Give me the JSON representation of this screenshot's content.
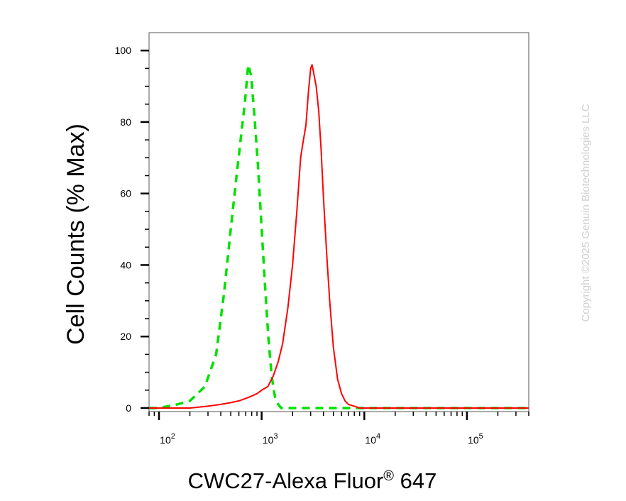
{
  "chart_data": {
    "type": "line",
    "title": "",
    "xlabel": "CWC27-Alexa Fluor",
    "xlabel_mark": "®",
    "xlabel_suffix": " 647",
    "ylabel": "Cell Counts (% Max)",
    "xscale": "log",
    "xlim": [
      80,
      400000
    ],
    "ylim": [
      -1,
      105
    ],
    "x_ticks": [
      {
        "value": 100,
        "base": "10",
        "exp": "2"
      },
      {
        "value": 1000,
        "base": "10",
        "exp": "3"
      },
      {
        "value": 10000,
        "base": "10",
        "exp": "4"
      },
      {
        "value": 100000,
        "base": "10",
        "exp": "5"
      }
    ],
    "y_ticks": [
      0,
      20,
      40,
      60,
      80,
      100
    ],
    "grid": false,
    "series": [
      {
        "color": "#00e000",
        "style": "dashed",
        "x": [
          80,
          100,
          150,
          200,
          280,
          360,
          430,
          500,
          570,
          630,
          690,
          740,
          790,
          850,
          920,
          1000,
          1080,
          1160,
          1250,
          1350,
          1450,
          1550,
          1700,
          2000,
          5000,
          20000,
          100000,
          400000
        ],
        "y": [
          0,
          0,
          1,
          2,
          6,
          15,
          32,
          50,
          65,
          76,
          86,
          96,
          93,
          82,
          68,
          50,
          34,
          20,
          9,
          3,
          1,
          0,
          0,
          0,
          0,
          0,
          0,
          0
        ]
      },
      {
        "color": "#ff0000",
        "style": "solid",
        "x": [
          80,
          200,
          300,
          400,
          500,
          600,
          750,
          900,
          1000,
          1150,
          1300,
          1450,
          1600,
          1800,
          2000,
          2200,
          2400,
          2550,
          2700,
          2850,
          3000,
          3100,
          3200,
          3400,
          3600,
          3800,
          4000,
          4300,
          4600,
          5000,
          5500,
          6000,
          6500,
          7000,
          8000,
          9000,
          10000,
          20000,
          100000,
          400000
        ],
        "y": [
          0,
          0,
          0.5,
          1,
          1.5,
          2,
          3,
          4,
          5,
          6,
          9,
          13,
          18,
          28,
          40,
          55,
          70,
          75,
          79,
          88,
          95,
          96,
          94,
          90,
          83,
          72,
          59,
          43,
          30,
          17,
          8,
          4,
          2,
          1,
          0.5,
          0,
          0,
          0,
          0,
          0
        ]
      }
    ]
  },
  "watermark": "Copyright ©2025 Genuin Biotechnologies LLC"
}
